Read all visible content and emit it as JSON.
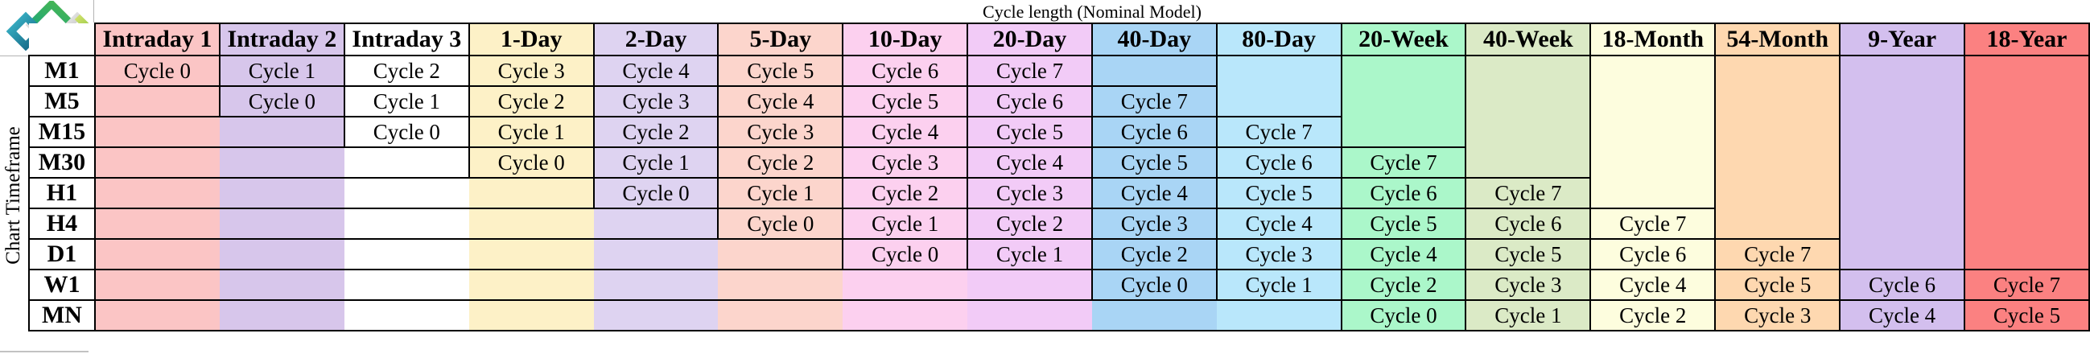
{
  "title": "Cycle length (Nominal Model)",
  "y_axis_label": "Chart Timeframe",
  "logo": "motivewave-diamonds-logo",
  "columns": [
    "Intraday 1",
    "Intraday 2",
    "Intraday 3",
    "1-Day",
    "2-Day",
    "5-Day",
    "10-Day",
    "20-Day",
    "40-Day",
    "80-Day",
    "20-Week",
    "40-Week",
    "18-Month",
    "54-Month",
    "9-Year",
    "18-Year"
  ],
  "column_colors": [
    "#FBC5C5",
    "#D7C6EB",
    "#FFFFFF",
    "#FDF1C7",
    "#DED3F1",
    "#FCD5CC",
    "#FCD0EF",
    "#F2CBF7",
    "#A9D5F5",
    "#B9E7FB",
    "#ABF7CA",
    "#DBEAC6",
    "#FDFDDE",
    "#FED8B0",
    "#D3BFEE",
    "#FB8181"
  ],
  "rows": [
    {
      "label": "M1",
      "start": 0,
      "cycles": [
        "Cycle 0",
        "Cycle 1",
        "Cycle 2",
        "Cycle 3",
        "Cycle 4",
        "Cycle 5",
        "Cycle 6",
        "Cycle 7"
      ]
    },
    {
      "label": "M5",
      "start": 1,
      "cycles": [
        "Cycle 0",
        "Cycle 1",
        "Cycle 2",
        "Cycle 3",
        "Cycle 4",
        "Cycle 5",
        "Cycle 6",
        "Cycle 7"
      ]
    },
    {
      "label": "M15",
      "start": 2,
      "cycles": [
        "Cycle 0",
        "Cycle 1",
        "Cycle 2",
        "Cycle 3",
        "Cycle 4",
        "Cycle 5",
        "Cycle 6",
        "Cycle 7"
      ]
    },
    {
      "label": "M30",
      "start": 3,
      "cycles": [
        "Cycle 0",
        "Cycle 1",
        "Cycle 2",
        "Cycle 3",
        "Cycle 4",
        "Cycle 5",
        "Cycle 6",
        "Cycle 7"
      ]
    },
    {
      "label": "H1",
      "start": 4,
      "cycles": [
        "Cycle 0",
        "Cycle 1",
        "Cycle 2",
        "Cycle 3",
        "Cycle 4",
        "Cycle 5",
        "Cycle 6",
        "Cycle 7"
      ]
    },
    {
      "label": "H4",
      "start": 5,
      "cycles": [
        "Cycle 0",
        "Cycle 1",
        "Cycle 2",
        "Cycle 3",
        "Cycle 4",
        "Cycle 5",
        "Cycle 6",
        "Cycle 7"
      ]
    },
    {
      "label": "D1",
      "start": 6,
      "cycles": [
        "Cycle 0",
        "Cycle 1",
        "Cycle 2",
        "Cycle 3",
        "Cycle 4",
        "Cycle 5",
        "Cycle 6",
        "Cycle 7"
      ]
    },
    {
      "label": "W1",
      "start": 8,
      "cycles": [
        "Cycle 0",
        "Cycle 1",
        "Cycle 2",
        "Cycle 3",
        "Cycle 4",
        "Cycle 5",
        "Cycle 6",
        "Cycle 7"
      ]
    },
    {
      "label": "MN",
      "start": 10,
      "cycles": [
        "Cycle 0",
        "Cycle 1",
        "Cycle 2",
        "Cycle 3",
        "Cycle 4",
        "Cycle 5"
      ]
    }
  ],
  "colors": {
    "border": "#000000",
    "text": "#000000",
    "grid_artifact": "#B3B3B3",
    "logo_teal_light": "#3BB6C9",
    "logo_teal_dark": "#11607F",
    "logo_green": "#1FA878",
    "logo_lime": "#8DC63F",
    "logo_silver_light": "#EDEDED",
    "logo_silver_dark": "#8F8F8F"
  }
}
